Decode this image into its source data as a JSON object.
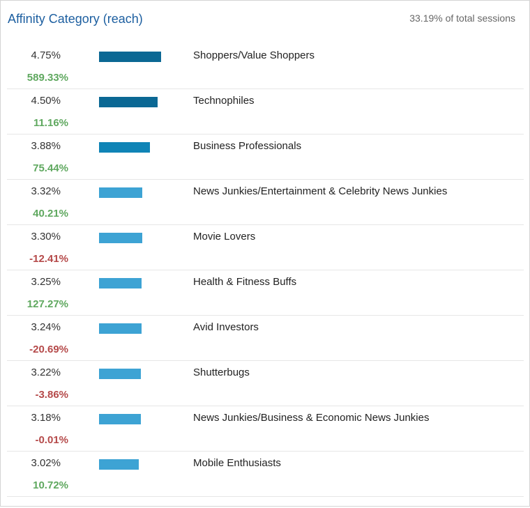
{
  "header": {
    "title": "Affinity Category (reach)",
    "subtitle": "33.19% of total sessions"
  },
  "colors": {
    "title": "#1d5fa0",
    "positive": "#5fa85f",
    "negative": "#b54a4a",
    "bar_dark": "#0b6894",
    "bar_mid": "#0f84b6",
    "bar_light": "#3da3d4"
  },
  "chart_data": {
    "type": "bar",
    "orientation": "horizontal",
    "title": "Affinity Category (reach)",
    "subtitle": "33.19% of total sessions",
    "xlim": [
      0,
      4.75
    ],
    "categories": [
      "Shoppers/Value Shoppers",
      "Technophiles",
      "Business Professionals",
      "News Junkies/Entertainment & Celebrity News Junkies",
      "Movie Lovers",
      "Health & Fitness Buffs",
      "Avid Investors",
      "Shutterbugs",
      "News Junkies/Business & Economic News Junkies",
      "Mobile Enthusiasts"
    ],
    "values": [
      4.75,
      4.5,
      3.88,
      3.32,
      3.3,
      3.25,
      3.24,
      3.22,
      3.18,
      3.02
    ],
    "value_labels": [
      "4.75%",
      "4.50%",
      "3.88%",
      "3.32%",
      "3.30%",
      "3.25%",
      "3.24%",
      "3.22%",
      "3.18%",
      "3.02%"
    ],
    "changes": [
      589.33,
      11.16,
      75.44,
      40.21,
      -12.41,
      127.27,
      -20.69,
      -3.86,
      -0.01,
      10.72
    ],
    "change_labels": [
      "589.33%",
      "11.16%",
      "75.44%",
      "40.21%",
      "-12.41%",
      "127.27%",
      "-20.69%",
      "-3.86%",
      "-0.01%",
      "10.72%"
    ],
    "bar_shades": [
      "dark",
      "dark",
      "mid",
      "light",
      "light",
      "light",
      "light",
      "light",
      "light",
      "light"
    ]
  }
}
